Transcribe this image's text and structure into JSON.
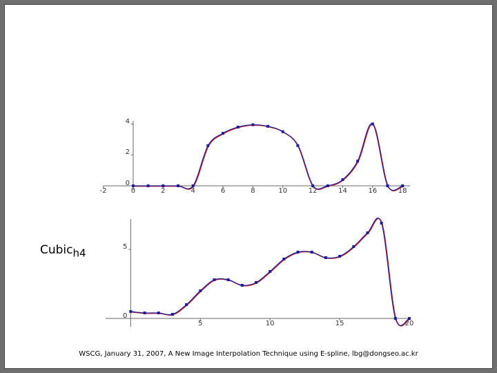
{
  "label": {
    "text": "Cubic",
    "subscript": "h4"
  },
  "footer": "WSCG, January 31, 2007, A New  Image Interpolation Technique using E-spline, lbg@dongseo.ac.kr",
  "chart_data": [
    {
      "type": "line",
      "x": [
        0,
        1,
        2,
        3,
        4,
        5,
        6,
        7,
        8,
        9,
        10,
        11,
        12,
        13,
        14,
        15,
        16,
        17,
        18
      ],
      "series": [
        {
          "color": "#1c1c9c",
          "values": [
            0,
            0,
            0,
            0,
            0,
            2.6,
            3.4,
            3.8,
            3.95,
            3.85,
            3.5,
            2.6,
            0,
            0,
            0.4,
            1.6,
            4,
            0,
            0
          ]
        }
      ],
      "xlim": [
        -2,
        18.5
      ],
      "ylim": [
        -0.3,
        4.2
      ],
      "xticks": [
        -2,
        0,
        2,
        4,
        6,
        8,
        10,
        12,
        14,
        16,
        18
      ],
      "yticks": [
        0,
        2,
        4
      ]
    },
    {
      "type": "line",
      "x": [
        0,
        1,
        2,
        3,
        4,
        5,
        6,
        7,
        8,
        9,
        10,
        11,
        12,
        13,
        14,
        15,
        16,
        17,
        18,
        19,
        20
      ],
      "series": [
        {
          "color": "#1c1c9c",
          "values": [
            0.5,
            0.4,
            0.4,
            0.3,
            1.0,
            2.0,
            2.8,
            2.8,
            2.4,
            2.6,
            3.4,
            4.3,
            4.8,
            4.8,
            4.4,
            4.5,
            5.2,
            6.2,
            6.9,
            0,
            0
          ]
        }
      ],
      "xlim": [
        -1.8,
        20
      ],
      "ylim": [
        -0.6,
        7.2
      ],
      "xticks": [
        5,
        10,
        15,
        20
      ],
      "yticks": [
        0,
        5
      ]
    }
  ]
}
